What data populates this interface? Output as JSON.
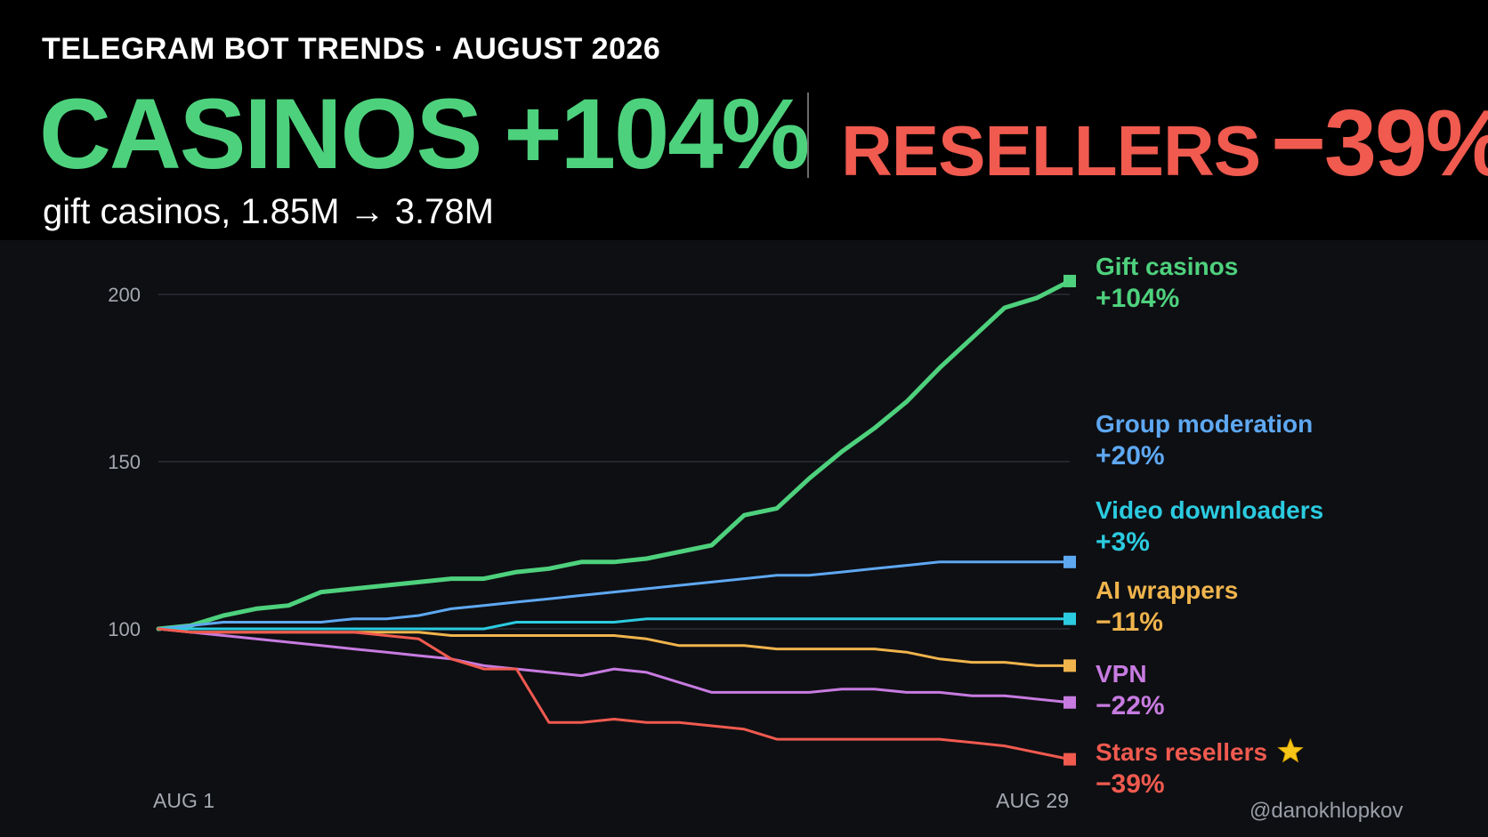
{
  "header": {
    "kicker": "TELEGRAM BOT TRENDS · AUGUST 2026",
    "left_word": "CASINOS",
    "left_value": "+104%",
    "right_word": "RESELLERS",
    "right_value": "−39%",
    "subline": "gift casinos, 1.85M → 3.78M"
  },
  "watermark": "@danokhlopkov",
  "colors": {
    "background": "#0e0f13",
    "header_background": "#000000",
    "positive": "#4ed17d",
    "negative": "#f05a4f"
  },
  "chart_data": {
    "type": "line",
    "x": [
      "AUG 1",
      "AUG 2",
      "AUG 3",
      "AUG 4",
      "AUG 5",
      "AUG 6",
      "AUG 7",
      "AUG 8",
      "AUG 9",
      "AUG 10",
      "AUG 11",
      "AUG 12",
      "AUG 13",
      "AUG 14",
      "AUG 15",
      "AUG 16",
      "AUG 17",
      "AUG 18",
      "AUG 19",
      "AUG 20",
      "AUG 21",
      "AUG 22",
      "AUG 23",
      "AUG 24",
      "AUG 25",
      "AUG 26",
      "AUG 27",
      "AUG 28",
      "AUG 29"
    ],
    "x_ticks": [
      "AUG 1",
      "AUG 29"
    ],
    "y_ticks": [
      100,
      150,
      200
    ],
    "ylim": [
      58,
      214
    ],
    "grid": true,
    "legend": "right-end labels",
    "series": [
      {
        "name": "Gift casinos",
        "change": "+104%",
        "color": "#4ed17d",
        "star": false,
        "values": [
          100,
          101,
          104,
          106,
          107,
          111,
          112,
          113,
          114,
          115,
          115,
          117,
          118,
          120,
          120,
          121,
          123,
          125,
          134,
          136,
          145,
          153,
          160,
          168,
          178,
          187,
          196,
          199,
          204
        ]
      },
      {
        "name": "Group moderation",
        "change": "+20%",
        "color": "#5ea8f2",
        "star": false,
        "values": [
          100,
          101,
          102,
          102,
          102,
          102,
          103,
          103,
          104,
          106,
          107,
          108,
          109,
          110,
          111,
          112,
          113,
          114,
          115,
          116,
          116,
          117,
          118,
          119,
          120,
          120,
          120,
          120,
          120
        ]
      },
      {
        "name": "Video downloaders",
        "change": "+3%",
        "color": "#2bcbe0",
        "star": false,
        "values": [
          100,
          100,
          100,
          100,
          100,
          100,
          100,
          100,
          100,
          100,
          100,
          102,
          102,
          102,
          102,
          103,
          103,
          103,
          103,
          103,
          103,
          103,
          103,
          103,
          103,
          103,
          103,
          103,
          103
        ]
      },
      {
        "name": "AI wrappers",
        "change": "−11%",
        "color": "#f0b44c",
        "star": false,
        "values": [
          100,
          99,
          99,
          99,
          99,
          99,
          99,
          99,
          99,
          98,
          98,
          98,
          98,
          98,
          98,
          97,
          95,
          95,
          95,
          94,
          94,
          94,
          94,
          93,
          91,
          90,
          90,
          89,
          89
        ]
      },
      {
        "name": "VPN",
        "change": "−22%",
        "color": "#c77be0",
        "star": false,
        "values": [
          100,
          99,
          98,
          97,
          96,
          95,
          94,
          93,
          92,
          91,
          89,
          88,
          87,
          86,
          88,
          87,
          84,
          81,
          81,
          81,
          81,
          82,
          82,
          81,
          81,
          80,
          80,
          79,
          78
        ]
      },
      {
        "name": "Stars resellers",
        "change": "−39%",
        "color": "#f05a4f",
        "star": true,
        "values": [
          100,
          99,
          99,
          99,
          99,
          99,
          99,
          98,
          97,
          91,
          88,
          88,
          72,
          72,
          73,
          72,
          72,
          71,
          70,
          67,
          67,
          67,
          67,
          67,
          67,
          66,
          65,
          63,
          61
        ]
      }
    ]
  }
}
